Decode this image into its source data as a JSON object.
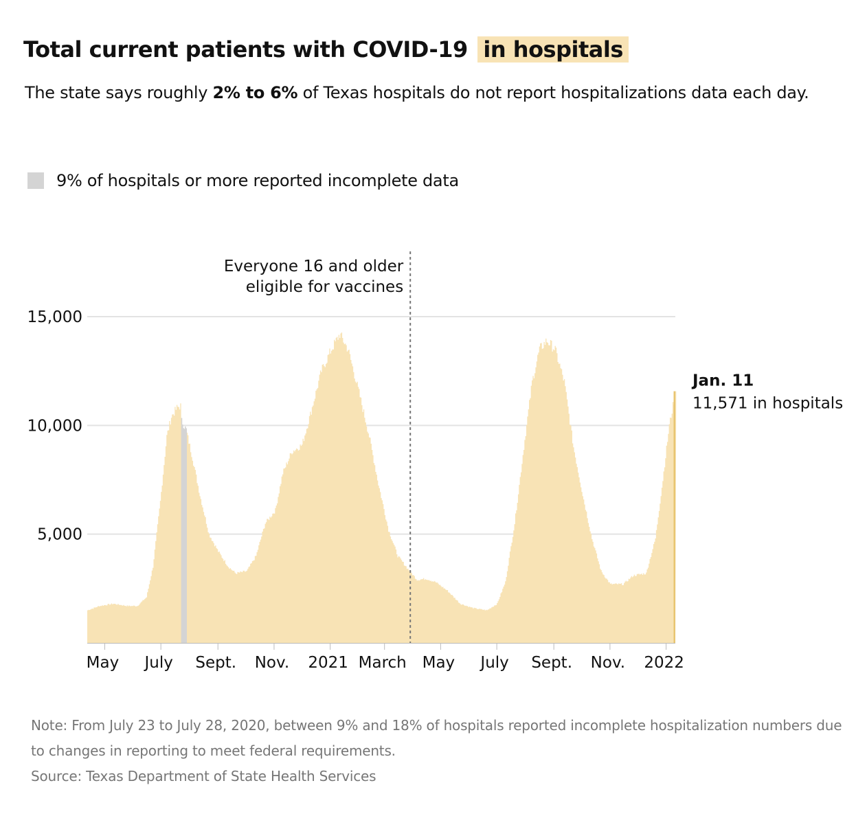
{
  "header": {
    "title_main": "Total current patients with COVID-19",
    "title_highlight": "in hospitals",
    "highlight_color": "#f8e3b5",
    "subtitle_before": "The state says roughly ",
    "subtitle_bold": "2% to 6%",
    "subtitle_after": " of Texas hospitals do not report hospitalizations data each day."
  },
  "legend": {
    "label": "9% of hospitals or more reported incomplete data",
    "swatch_color": "#d4d4d4"
  },
  "chart_data": {
    "type": "area",
    "x_start": "2020-04-12",
    "x_end": "2022-01-11",
    "ylim": [
      0,
      15000
    ],
    "grid": true,
    "gridlines": [
      5000,
      10000,
      15000
    ],
    "y_ticks": [
      {
        "value": 5000,
        "label": "5,000"
      },
      {
        "value": 10000,
        "label": "10,000"
      },
      {
        "value": 15000,
        "label": "15,000"
      }
    ],
    "x_ticks": [
      {
        "date": "2020-05-01",
        "label": "May"
      },
      {
        "date": "2020-07-01",
        "label": "July"
      },
      {
        "date": "2020-09-01",
        "label": "Sept."
      },
      {
        "date": "2020-11-01",
        "label": "Nov."
      },
      {
        "date": "2021-01-01",
        "label": "2021"
      },
      {
        "date": "2021-03-01",
        "label": "March"
      },
      {
        "date": "2021-05-01",
        "label": "May"
      },
      {
        "date": "2021-07-01",
        "label": "July"
      },
      {
        "date": "2021-09-01",
        "label": "Sept."
      },
      {
        "date": "2021-11-01",
        "label": "Nov."
      },
      {
        "date": "2022-01-01",
        "label": "2022"
      }
    ],
    "area_color": "#f8e3b5",
    "incomplete_color": "#d4d4d4",
    "last_bar_color": "#e8c571",
    "incomplete_range": [
      "2020-07-23",
      "2020-07-28"
    ],
    "series": [
      {
        "points": [
          [
            "2020-04-12",
            1500
          ],
          [
            "2020-04-25",
            1700
          ],
          [
            "2020-05-10",
            1800
          ],
          [
            "2020-05-25",
            1700
          ],
          [
            "2020-06-05",
            1700
          ],
          [
            "2020-06-15",
            2100
          ],
          [
            "2020-06-22",
            3500
          ],
          [
            "2020-06-30",
            6500
          ],
          [
            "2020-07-07",
            9500
          ],
          [
            "2020-07-12",
            10400
          ],
          [
            "2020-07-18",
            10800
          ],
          [
            "2020-07-22",
            10900
          ],
          [
            "2020-07-23",
            10200
          ],
          [
            "2020-07-28",
            9800
          ],
          [
            "2020-08-04",
            8500
          ],
          [
            "2020-08-12",
            6800
          ],
          [
            "2020-08-22",
            5000
          ],
          [
            "2020-09-01",
            4200
          ],
          [
            "2020-09-12",
            3500
          ],
          [
            "2020-09-20",
            3200
          ],
          [
            "2020-10-02",
            3300
          ],
          [
            "2020-10-12",
            4000
          ],
          [
            "2020-10-22",
            5500
          ],
          [
            "2020-11-02",
            6100
          ],
          [
            "2020-11-10",
            7800
          ],
          [
            "2020-11-20",
            8800
          ],
          [
            "2020-12-01",
            9100
          ],
          [
            "2020-12-10",
            10500
          ],
          [
            "2020-12-22",
            12500
          ],
          [
            "2021-01-02",
            13500
          ],
          [
            "2021-01-11",
            14200
          ],
          [
            "2021-01-20",
            13500
          ],
          [
            "2021-02-01",
            11500
          ],
          [
            "2021-02-12",
            9500
          ],
          [
            "2021-02-22",
            7300
          ],
          [
            "2021-03-05",
            5200
          ],
          [
            "2021-03-15",
            4000
          ],
          [
            "2021-03-26",
            3400
          ],
          [
            "2021-04-05",
            2900
          ],
          [
            "2021-04-15",
            2950
          ],
          [
            "2021-04-25",
            2800
          ],
          [
            "2021-05-08",
            2400
          ],
          [
            "2021-05-22",
            1800
          ],
          [
            "2021-06-05",
            1600
          ],
          [
            "2021-06-20",
            1500
          ],
          [
            "2021-07-01",
            1800
          ],
          [
            "2021-07-10",
            2800
          ],
          [
            "2021-07-20",
            5500
          ],
          [
            "2021-07-30",
            9000
          ],
          [
            "2021-08-08",
            12000
          ],
          [
            "2021-08-16",
            13500
          ],
          [
            "2021-08-24",
            13900
          ],
          [
            "2021-09-02",
            13500
          ],
          [
            "2021-09-12",
            12000
          ],
          [
            "2021-09-22",
            9000
          ],
          [
            "2021-10-02",
            6800
          ],
          [
            "2021-10-12",
            4800
          ],
          [
            "2021-10-22",
            3300
          ],
          [
            "2021-11-01",
            2700
          ],
          [
            "2021-11-15",
            2700
          ],
          [
            "2021-11-26",
            3100
          ],
          [
            "2021-12-10",
            3200
          ],
          [
            "2021-12-20",
            4800
          ],
          [
            "2021-12-28",
            7500
          ],
          [
            "2022-01-04",
            10000
          ],
          [
            "2022-01-11",
            11571
          ]
        ]
      }
    ],
    "annotations": {
      "vaccine_date": "2021-03-29",
      "vaccine_line1": "Everyone 16 and older",
      "vaccine_line2": "eligible for vaccines",
      "last_label_date": "Jan. 11",
      "last_label_text": "11,571 in hospitals"
    }
  },
  "notes": {
    "note": "Note: From July 23 to July 28, 2020, between 9% and 18% of hospitals reported incomplete hospitalization numbers due to changes in reporting to meet federal requirements.",
    "source": "Source: Texas Department of State Health Services"
  }
}
